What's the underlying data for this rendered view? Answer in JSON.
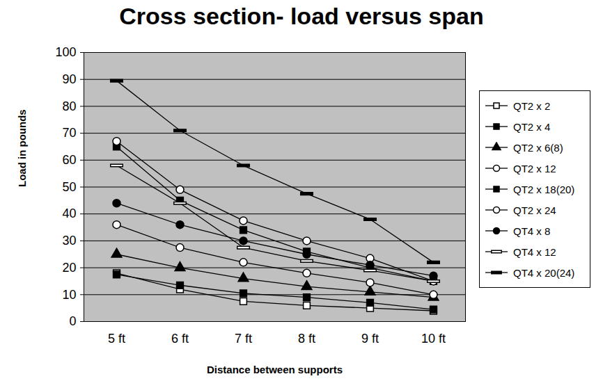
{
  "chart_data": {
    "type": "line",
    "title": "Cross section- load versus span",
    "x_label": "Distance between supports",
    "y_label": "Load in pounds",
    "categories": [
      "5 ft",
      "6 ft",
      "7 ft",
      "8 ft",
      "9 ft",
      "10 ft"
    ],
    "ylim": [
      0,
      100
    ],
    "yticks": [
      0,
      10,
      20,
      30,
      40,
      50,
      60,
      70,
      80,
      90,
      100
    ],
    "grid": true,
    "legend": "right",
    "series": [
      {
        "name": "QT2 x 2",
        "color": "#000000",
        "marker": "square-open",
        "values": [
          18,
          12,
          7.5,
          6,
          5,
          4
        ]
      },
      {
        "name": "QT2 x 4",
        "color": "#000000",
        "marker": "square",
        "values": [
          17.5,
          13.5,
          10.5,
          9,
          7,
          4.5
        ]
      },
      {
        "name": "QT2 x 6(8)",
        "color": "#000000",
        "marker": "triangle",
        "values": [
          25,
          20,
          16,
          13,
          11,
          9
        ]
      },
      {
        "name": "QT2 x 12",
        "color": "#000000",
        "marker": "circle-open",
        "values": [
          36,
          27.5,
          22,
          18,
          14.5,
          10
        ]
      },
      {
        "name": "QT2 x 18(20)",
        "color": "#000000",
        "marker": "square",
        "values": [
          65,
          45,
          34,
          26,
          20,
          15
        ]
      },
      {
        "name": "QT2 x 24",
        "color": "#000000",
        "marker": "circle-open",
        "values": [
          67,
          49,
          37.5,
          30,
          23.5,
          15
        ]
      },
      {
        "name": "QT4 x 8",
        "color": "#000000",
        "marker": "circle",
        "values": [
          44,
          36,
          30,
          25,
          21,
          17
        ]
      },
      {
        "name": "QT4 x 12",
        "color": "#000000",
        "marker": "dash-open",
        "values": [
          58,
          44,
          27.5,
          22.5,
          19,
          15
        ]
      },
      {
        "name": "QT4 x 20(24)",
        "color": "#000000",
        "marker": "dash",
        "values": [
          89.5,
          71,
          58,
          47.5,
          38,
          22
        ]
      }
    ]
  }
}
